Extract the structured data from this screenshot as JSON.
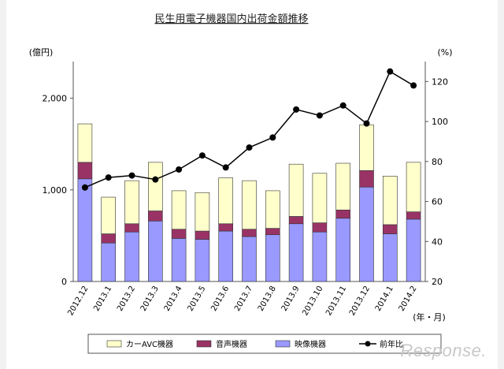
{
  "chart_data": {
    "type": "bar",
    "subtype": "stacked-bar-with-line",
    "title": "民生用電子機器国内出荷金額推移",
    "left_unit": "(億円)",
    "right_unit": "(%)",
    "x_unit": "(年・月)",
    "categories": [
      "2012.12",
      "2013.1",
      "2013.2",
      "2013.3",
      "2013.4",
      "2013.5",
      "2013.6",
      "2013.7",
      "2013.8",
      "2013.9",
      "2013.10",
      "2013.11",
      "2013.12",
      "2014.1",
      "2014.2"
    ],
    "series": [
      {
        "name": "映像機器",
        "kind": "bar",
        "color": "#9999ff",
        "values": [
          1120,
          420,
          540,
          660,
          470,
          460,
          550,
          490,
          510,
          630,
          540,
          690,
          1030,
          520,
          680
        ]
      },
      {
        "name": "音声機器",
        "kind": "bar",
        "color": "#993366",
        "values": [
          180,
          100,
          90,
          110,
          100,
          90,
          80,
          80,
          70,
          80,
          100,
          90,
          180,
          100,
          80
        ]
      },
      {
        "name": "カーAVC機器",
        "kind": "bar",
        "color": "#ffffcc",
        "values": [
          420,
          400,
          470,
          530,
          420,
          420,
          500,
          530,
          410,
          570,
          540,
          510,
          500,
          530,
          540
        ]
      },
      {
        "name": "前年比",
        "kind": "line",
        "axis": "right",
        "color": "#000000",
        "values": [
          67,
          72,
          73,
          71,
          76,
          83,
          77,
          87,
          92,
          106,
          103,
          108,
          99,
          125,
          118
        ]
      }
    ],
    "y_left": {
      "min": 0,
      "max": 2400,
      "ticks": [
        0,
        1000,
        2000
      ],
      "tick_labels": [
        "0",
        "1,000",
        "2,000"
      ]
    },
    "y_right": {
      "min": 20,
      "max": 130,
      "ticks": [
        20,
        40,
        60,
        80,
        100,
        120
      ],
      "tick_labels": [
        "20",
        "40",
        "60",
        "80",
        "100",
        "120"
      ]
    },
    "legend_position": "bottom"
  },
  "watermark": "Response."
}
